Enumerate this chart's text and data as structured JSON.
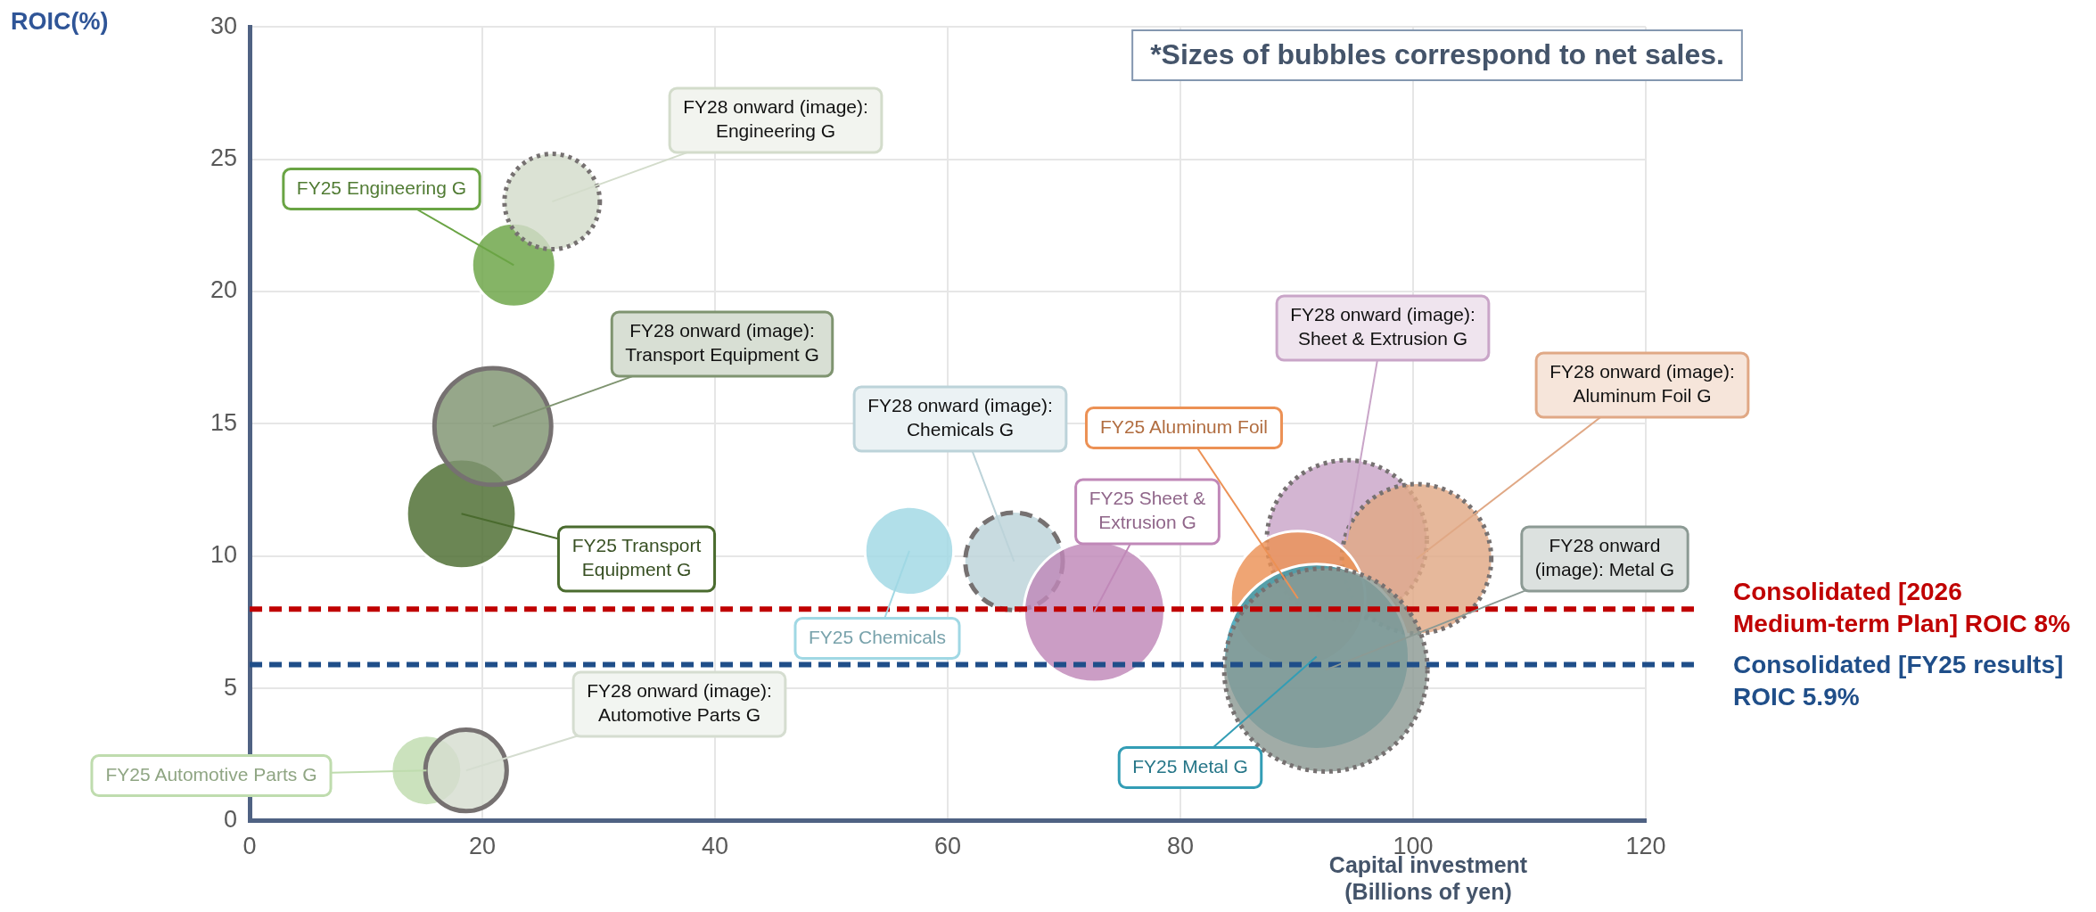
{
  "chart_data": {
    "type": "bubble",
    "xlabel": "Capital investment (Billions of yen)",
    "ylabel": "ROIC(%)",
    "xlim": [
      0,
      120
    ],
    "ylim": [
      0,
      30
    ],
    "xticks": [
      0,
      20,
      40,
      60,
      80,
      100,
      120
    ],
    "yticks": [
      0,
      5,
      10,
      15,
      20,
      25,
      30
    ],
    "grid": true,
    "annotations": [
      "*Sizes of bubbles correspond to net sales."
    ],
    "ref_lines": [
      {
        "axis": "y",
        "value": 8,
        "label": "Consolidated [2026 Medium-term Plan] ROIC 8%",
        "color": "#c00000",
        "line_style": "dashed"
      },
      {
        "axis": "y",
        "value": 5.9,
        "label": "Consolidated [FY25 results] ROIC 5.9%",
        "color": "#1f4e89",
        "line_style": "dashed"
      }
    ],
    "series": [
      {
        "name": "FY25 Engineering G",
        "color": "#6aa444",
        "x": [
          22.7
        ],
        "values": [
          21.0
        ],
        "sizes": [
          0.17
        ]
      },
      {
        "name": "FY28 onward (image): Engineering G",
        "color": "#d3dccb",
        "x": [
          26.0
        ],
        "values": [
          23.4
        ],
        "sizes": [
          0.22
        ],
        "line_style": "dotted"
      },
      {
        "name": "FY25 Transport Equipment G",
        "color": "#4a6b2e",
        "x": [
          18.2
        ],
        "values": [
          11.6
        ],
        "sizes": [
          0.29
        ]
      },
      {
        "name": "FY28 onward (image): Transport Equipment G",
        "color": "#7f9470",
        "x": [
          20.9
        ],
        "values": [
          14.9
        ],
        "sizes": [
          0.33
        ],
        "line_style": "solid"
      },
      {
        "name": "FY25 Automotive Parts G",
        "color": "#bfdcae",
        "x": [
          15.2
        ],
        "values": [
          1.9
        ],
        "sizes": [
          0.12
        ]
      },
      {
        "name": "FY28 onward (image): Automotive Parts G",
        "color": "#d5ddd0",
        "x": [
          18.6
        ],
        "values": [
          1.9
        ],
        "sizes": [
          0.16
        ],
        "line_style": "solid"
      },
      {
        "name": "FY25 Chemicals",
        "color": "#a0d8e4",
        "x": [
          56.7
        ],
        "values": [
          10.2
        ],
        "sizes": [
          0.19
        ]
      },
      {
        "name": "FY28 onward (image): Chemicals G",
        "color": "#bcd3d9",
        "x": [
          65.7
        ],
        "values": [
          9.8
        ],
        "sizes": [
          0.23
        ],
        "line_style": "dashed"
      },
      {
        "name": "FY25 Sheet & Extrusion G",
        "color": "#c088b8",
        "x": [
          72.6
        ],
        "values": [
          7.9
        ],
        "sizes": [
          0.48
        ]
      },
      {
        "name": "FY28 onward (image): Sheet & Extrusion G",
        "color": "#c9a5c8",
        "x": [
          94.3
        ],
        "values": [
          10.6
        ],
        "sizes": [
          0.62
        ],
        "line_style": "dotted"
      },
      {
        "name": "FY28 onward (image): Aluminum Foil G",
        "color": "#e0a885",
        "x": [
          100.3
        ],
        "values": [
          9.9
        ],
        "sizes": [
          0.54
        ],
        "line_style": "dotted"
      },
      {
        "name": "FY25 Aluminum Foil",
        "color": "#ec9155",
        "x": [
          90.1
        ],
        "values": [
          8.4
        ],
        "sizes": [
          0.44
        ]
      },
      {
        "name": "FY25 Metal G",
        "color": "#339db5",
        "x": [
          91.7
        ],
        "values": [
          6.2
        ],
        "sizes": [
          0.83
        ]
      },
      {
        "name": "FY28 onward (image): Metal G",
        "color": "#8c9a94",
        "x": [
          92.5
        ],
        "values": [
          5.7
        ],
        "sizes": [
          1
        ],
        "line_style": "dotted"
      }
    ]
  }
}
